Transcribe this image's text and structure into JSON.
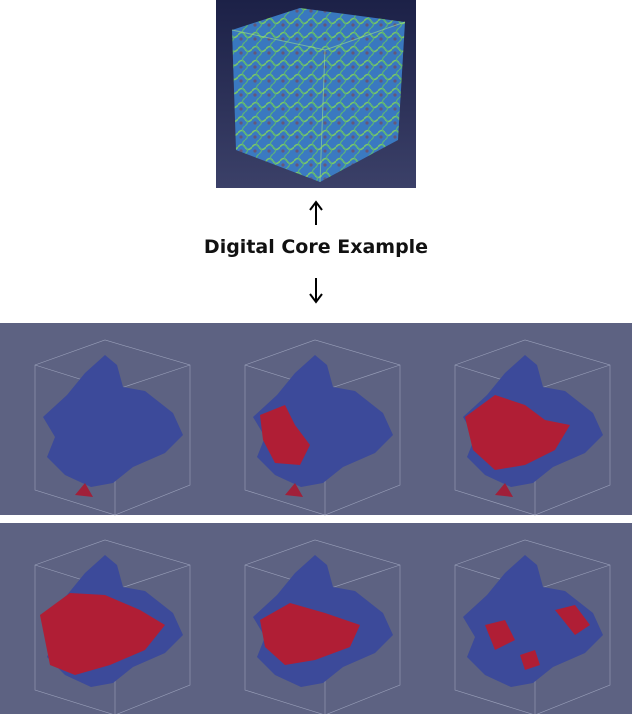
{
  "caption": "Digital Core Example"
}
